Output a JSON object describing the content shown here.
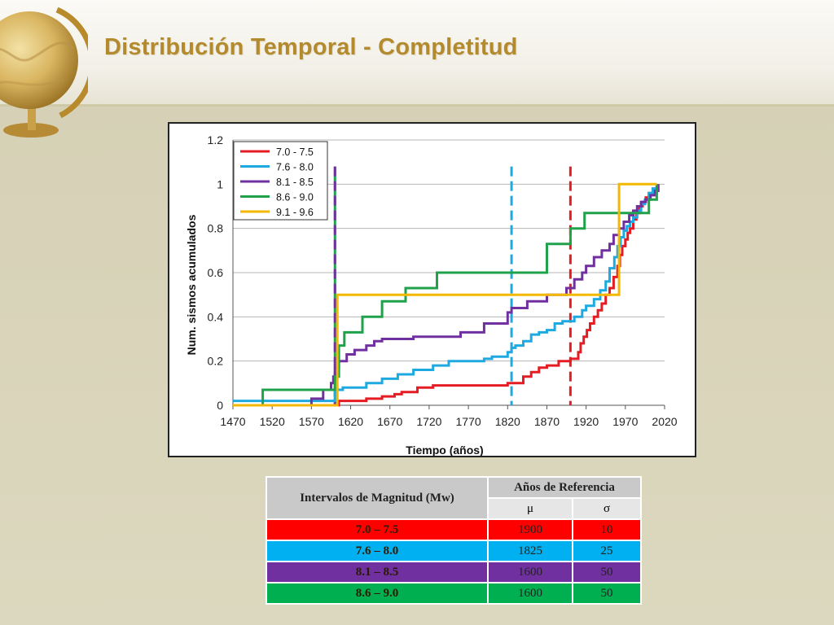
{
  "slide": {
    "title": "Distribución Temporal - Completitud"
  },
  "colors": {
    "red": "#e41c23",
    "blue": "#1ea9e1",
    "purple": "#7030a0",
    "green": "#1fa24a",
    "yellow": "#f5b800",
    "title_gold": "#b38a2e",
    "table_header": "#c9c9c9"
  },
  "chart_data": {
    "type": "line",
    "title": "",
    "xlabel": "Tiempo (años)",
    "ylabel": "Num. sismos acumulados",
    "xlim": [
      1470,
      2020
    ],
    "ylim": [
      0,
      1.2
    ],
    "xticks": [
      "1470",
      "1520",
      "1570",
      "1620",
      "1670",
      "1720",
      "1770",
      "1820",
      "1870",
      "1920",
      "1970",
      "2020"
    ],
    "yticks": [
      "0",
      "0.2",
      "0.4",
      "0.6",
      "0.8",
      "1",
      "1.2"
    ],
    "grid": "horizontal",
    "legend_position": "top-left",
    "series": [
      {
        "name": "7.0 - 7.5",
        "color": "#e41c23",
        "x": [
          1600,
          1605,
          1640,
          1660,
          1676,
          1685,
          1705,
          1725,
          1770,
          1820,
          1840,
          1850,
          1860,
          1870,
          1885,
          1900,
          1910,
          1913,
          1917,
          1921,
          1925,
          1930,
          1935,
          1940,
          1945,
          1950,
          1955,
          1960,
          1963,
          1966,
          1970,
          1973,
          1976,
          1980,
          1984,
          1988,
          1992,
          1996,
          2000,
          2005,
          2010
        ],
        "y": [
          0.0,
          0.02,
          0.03,
          0.04,
          0.05,
          0.06,
          0.08,
          0.09,
          0.09,
          0.1,
          0.13,
          0.15,
          0.17,
          0.18,
          0.2,
          0.21,
          0.24,
          0.28,
          0.31,
          0.34,
          0.37,
          0.4,
          0.43,
          0.46,
          0.5,
          0.53,
          0.58,
          0.63,
          0.68,
          0.72,
          0.75,
          0.78,
          0.8,
          0.84,
          0.87,
          0.9,
          0.92,
          0.94,
          0.96,
          0.98,
          1.0
        ]
      },
      {
        "name": "7.6 - 8.0",
        "color": "#1ea9e1",
        "x": [
          1470,
          1540,
          1600,
          1610,
          1640,
          1660,
          1680,
          1700,
          1725,
          1745,
          1760,
          1790,
          1800,
          1820,
          1825,
          1830,
          1840,
          1850,
          1860,
          1870,
          1880,
          1890,
          1905,
          1915,
          1920,
          1930,
          1938,
          1945,
          1950,
          1956,
          1960,
          1964,
          1968,
          1972,
          1976,
          1980,
          1985,
          1990,
          1995,
          2000,
          2005,
          2010
        ],
        "y": [
          0.02,
          0.02,
          0.07,
          0.08,
          0.1,
          0.12,
          0.14,
          0.16,
          0.18,
          0.2,
          0.2,
          0.21,
          0.22,
          0.24,
          0.26,
          0.27,
          0.29,
          0.32,
          0.33,
          0.34,
          0.37,
          0.38,
          0.4,
          0.43,
          0.45,
          0.48,
          0.52,
          0.56,
          0.62,
          0.67,
          0.72,
          0.76,
          0.79,
          0.81,
          0.83,
          0.85,
          0.88,
          0.91,
          0.93,
          0.96,
          0.98,
          1.0
        ]
      },
      {
        "name": "8.1 - 8.5",
        "color": "#7030a0",
        "x": [
          1545,
          1570,
          1585,
          1595,
          1598,
          1600,
          1605,
          1615,
          1625,
          1640,
          1650,
          1660,
          1700,
          1760,
          1790,
          1820,
          1825,
          1845,
          1870,
          1895,
          1905,
          1915,
          1920,
          1930,
          1940,
          1950,
          1955,
          1962,
          1968,
          1975,
          1980,
          1985,
          1990,
          1996,
          2002,
          2008,
          2012
        ],
        "y": [
          0.0,
          0.03,
          0.07,
          0.1,
          0.13,
          0.17,
          0.2,
          0.23,
          0.25,
          0.27,
          0.29,
          0.3,
          0.31,
          0.33,
          0.37,
          0.42,
          0.44,
          0.47,
          0.5,
          0.53,
          0.57,
          0.6,
          0.63,
          0.67,
          0.7,
          0.73,
          0.77,
          0.8,
          0.83,
          0.86,
          0.88,
          0.9,
          0.92,
          0.93,
          0.95,
          0.97,
          1.0
        ]
      },
      {
        "name": "8.6 - 9.0",
        "color": "#1fa24a",
        "x": [
          1470,
          1508,
          1595,
          1600,
          1605,
          1612,
          1635,
          1660,
          1690,
          1730,
          1750,
          1870,
          1900,
          1918,
          1945,
          2000,
          2010
        ],
        "y": [
          0.0,
          0.07,
          0.07,
          0.13,
          0.27,
          0.33,
          0.4,
          0.47,
          0.53,
          0.6,
          0.6,
          0.73,
          0.8,
          0.87,
          0.87,
          0.93,
          1.0
        ]
      },
      {
        "name": "9.1 - 9.6",
        "color": "#f5b800",
        "x": [
          1470,
          1600,
          1603,
          1960,
          1962,
          2010
        ],
        "y": [
          0.0,
          0.0,
          0.5,
          0.5,
          1.0,
          1.0
        ]
      }
    ],
    "reference_lines": [
      {
        "x": 1600,
        "color": "#1fa24a"
      },
      {
        "x": 1600,
        "color": "#7030a0"
      },
      {
        "x": 1825,
        "color": "#1ea9e1"
      },
      {
        "x": 1900,
        "color": "#e41c23"
      }
    ]
  },
  "table": {
    "header_interval": "Intervalos de Magnitud (Mw)",
    "header_ref": "Años de Referencia",
    "mu": "μ",
    "sigma": "σ",
    "rows": [
      {
        "range": "7.0 – 7.5",
        "mu": "1900",
        "sigma": "10",
        "color": "#ff0000"
      },
      {
        "range": "7.6 – 8.0",
        "mu": "1825",
        "sigma": "25",
        "color": "#00b0f0"
      },
      {
        "range": "8.1 – 8.5",
        "mu": "1600",
        "sigma": "50",
        "color": "#7030a0"
      },
      {
        "range": "8.6 – 9.0",
        "mu": "1600",
        "sigma": "50",
        "color": "#00b050"
      }
    ]
  }
}
